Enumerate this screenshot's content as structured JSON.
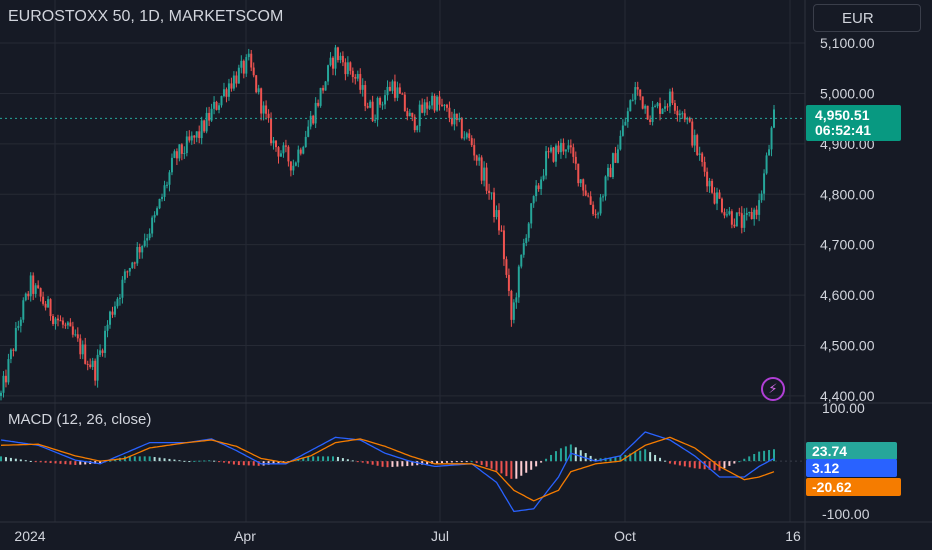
{
  "header": {
    "title": "EUROSTOXX 50, 1D, MARKETSCOM",
    "currency": "EUR"
  },
  "price_tag": {
    "price": "4,950.51",
    "countdown": "06:52:41"
  },
  "macd_panel": {
    "title": "MACD (12, 26, close)"
  },
  "macd_tags": [
    {
      "text": "23.74",
      "color": "#26a69a"
    },
    {
      "text": "3.12",
      "color": "#2962ff"
    },
    {
      "text": "-20.62",
      "color": "#f57c00"
    }
  ],
  "chart_data": [
    {
      "type": "candlestick",
      "x_ticks": [
        "2024",
        "Apr",
        "Jul",
        "Oct",
        "16"
      ],
      "y_ticks": [
        "5,100.00",
        "5,000.00",
        "4,900.00",
        "4,800.00",
        "4,700.00",
        "4,600.00",
        "4,500.00",
        "4,400.00"
      ],
      "ylim": [
        4380,
        5110
      ],
      "last_price": 4950.51,
      "up_color": "#26a69a",
      "down_color": "#ef5350",
      "anchors": [
        {
          "i": 0,
          "v": 4400
        },
        {
          "i": 8,
          "v": 4560
        },
        {
          "i": 12,
          "v": 4620
        },
        {
          "i": 18,
          "v": 4580
        },
        {
          "i": 30,
          "v": 4510
        },
        {
          "i": 38,
          "v": 4450
        },
        {
          "i": 44,
          "v": 4560
        },
        {
          "i": 52,
          "v": 4660
        },
        {
          "i": 62,
          "v": 4750
        },
        {
          "i": 70,
          "v": 4870
        },
        {
          "i": 80,
          "v": 4920
        },
        {
          "i": 92,
          "v": 5020
        },
        {
          "i": 100,
          "v": 5060
        },
        {
          "i": 110,
          "v": 4900
        },
        {
          "i": 118,
          "v": 4860
        },
        {
          "i": 126,
          "v": 4960
        },
        {
          "i": 135,
          "v": 5080
        },
        {
          "i": 142,
          "v": 5040
        },
        {
          "i": 150,
          "v": 4960
        },
        {
          "i": 158,
          "v": 5020
        },
        {
          "i": 166,
          "v": 4940
        },
        {
          "i": 174,
          "v": 4990
        },
        {
          "i": 182,
          "v": 4950
        },
        {
          "i": 190,
          "v": 4900
        },
        {
          "i": 196,
          "v": 4820
        },
        {
          "i": 202,
          "v": 4720
        },
        {
          "i": 206,
          "v": 4550
        },
        {
          "i": 212,
          "v": 4730
        },
        {
          "i": 220,
          "v": 4870
        },
        {
          "i": 228,
          "v": 4900
        },
        {
          "i": 234,
          "v": 4830
        },
        {
          "i": 240,
          "v": 4760
        },
        {
          "i": 248,
          "v": 4880
        },
        {
          "i": 256,
          "v": 5010
        },
        {
          "i": 262,
          "v": 4960
        },
        {
          "i": 270,
          "v": 4990
        },
        {
          "i": 276,
          "v": 4960
        },
        {
          "i": 282,
          "v": 4870
        },
        {
          "i": 288,
          "v": 4800
        },
        {
          "i": 294,
          "v": 4760
        },
        {
          "i": 300,
          "v": 4740
        },
        {
          "i": 306,
          "v": 4780
        },
        {
          "i": 312,
          "v": 4950
        }
      ]
    },
    {
      "type": "macd",
      "y_ticks": [
        "100.00",
        "-100.00"
      ],
      "ylim": [
        -115,
        108
      ],
      "series": [
        {
          "name": "MACD",
          "color": "#2962ff",
          "points": [
            [
              0,
              40
            ],
            [
              15,
              30
            ],
            [
              30,
              2
            ],
            [
              40,
              -5
            ],
            [
              50,
              15
            ],
            [
              60,
              35
            ],
            [
              75,
              35
            ],
            [
              85,
              42
            ],
            [
              95,
              20
            ],
            [
              105,
              -5
            ],
            [
              115,
              -5
            ],
            [
              125,
              20
            ],
            [
              135,
              45
            ],
            [
              145,
              40
            ],
            [
              155,
              15
            ],
            [
              165,
              0
            ],
            [
              175,
              -10
            ],
            [
              190,
              -5
            ],
            [
              200,
              -40
            ],
            [
              207,
              -95
            ],
            [
              215,
              -90
            ],
            [
              225,
              -30
            ],
            [
              230,
              15
            ],
            [
              240,
              0
            ],
            [
              250,
              10
            ],
            [
              260,
              55
            ],
            [
              270,
              40
            ],
            [
              280,
              10
            ],
            [
              290,
              -30
            ],
            [
              300,
              -30
            ],
            [
              306,
              -10
            ],
            [
              312,
              5
            ]
          ]
        },
        {
          "name": "Signal",
          "color": "#f57c00",
          "points": [
            [
              0,
              30
            ],
            [
              15,
              32
            ],
            [
              30,
              10
            ],
            [
              40,
              0
            ],
            [
              50,
              5
            ],
            [
              60,
              25
            ],
            [
              75,
              35
            ],
            [
              85,
              40
            ],
            [
              95,
              28
            ],
            [
              105,
              5
            ],
            [
              115,
              -3
            ],
            [
              125,
              10
            ],
            [
              135,
              35
            ],
            [
              145,
              42
            ],
            [
              155,
              28
            ],
            [
              165,
              10
            ],
            [
              175,
              -5
            ],
            [
              190,
              -5
            ],
            [
              200,
              -20
            ],
            [
              207,
              -55
            ],
            [
              215,
              -75
            ],
            [
              225,
              -55
            ],
            [
              230,
              -20
            ],
            [
              240,
              -5
            ],
            [
              250,
              0
            ],
            [
              260,
              30
            ],
            [
              270,
              45
            ],
            [
              280,
              25
            ],
            [
              290,
              -10
            ],
            [
              300,
              -35
            ],
            [
              306,
              -30
            ],
            [
              312,
              -20
            ]
          ]
        }
      ]
    }
  ]
}
